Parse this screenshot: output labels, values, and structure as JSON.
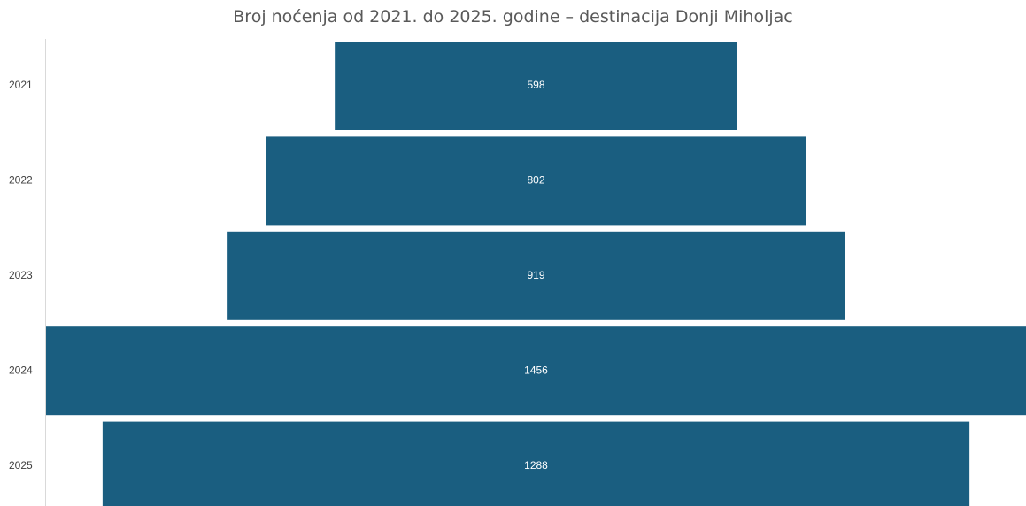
{
  "chart_data": {
    "type": "bar",
    "orientation": "horizontal-funnel",
    "title": "Broj noćenja od 2021. do 2025. godine – destinacija Donji Miholjac",
    "categories": [
      "2021",
      "2022",
      "2023",
      "2024",
      "2025"
    ],
    "values": [
      598,
      802,
      919,
      1456,
      1288
    ],
    "data_labels": [
      "598",
      "802",
      "919",
      "1456",
      "1288"
    ],
    "xlabel": "",
    "ylabel": "",
    "grid": false,
    "legend": "none",
    "bar_color": "#1a5e80",
    "label_color": "#ffffff"
  }
}
